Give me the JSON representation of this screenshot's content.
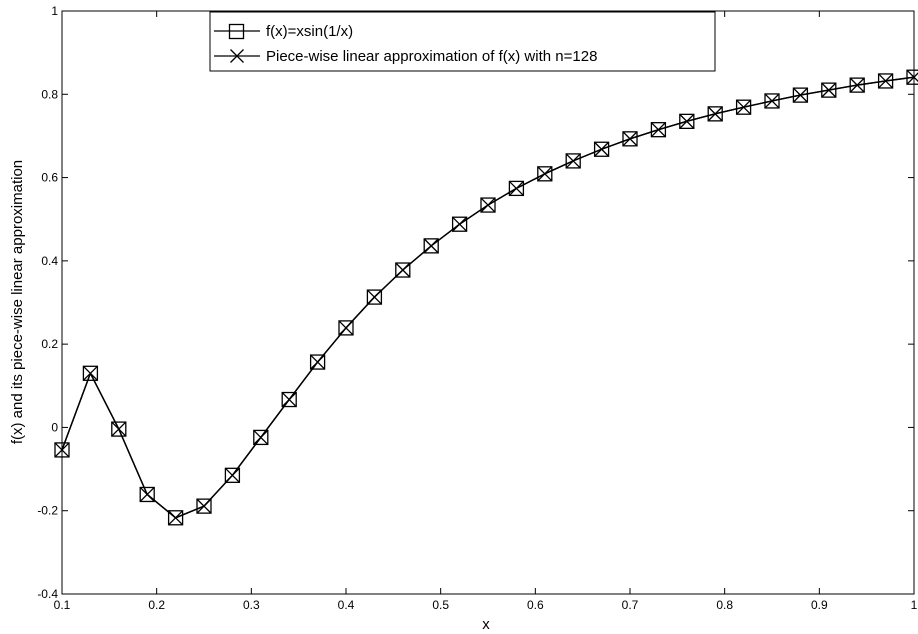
{
  "chart_data": {
    "type": "line",
    "title": "",
    "xlabel": "x",
    "ylabel": "f(x) and its piece-wise linear approximation",
    "xlim": [
      0.1,
      1
    ],
    "ylim": [
      -0.4,
      1
    ],
    "xticks": [
      0.1,
      0.2,
      0.3,
      0.4,
      0.5,
      0.6,
      0.7,
      0.8,
      0.9,
      1
    ],
    "xtick_labels": [
      "0.1",
      "0.2",
      "0.3",
      "0.4",
      "0.5",
      "0.6",
      "0.7",
      "0.8",
      "0.9",
      "1"
    ],
    "yticks": [
      -0.4,
      -0.2,
      0,
      0.2,
      0.4,
      0.6,
      0.8,
      1
    ],
    "ytick_labels": [
      "-0.4",
      "-0.2",
      "0",
      "0.2",
      "0.4",
      "0.6",
      "0.8",
      "1"
    ],
    "grid": false,
    "legend_position": "top-center",
    "line_color": "#000000",
    "series": [
      {
        "name": "f(x)=xsin(1/x)",
        "marker": "square",
        "x": [
          0.1,
          0.13,
          0.16,
          0.19,
          0.22,
          0.25,
          0.28,
          0.31,
          0.34,
          0.37,
          0.4,
          0.43,
          0.46,
          0.49,
          0.52,
          0.55,
          0.58,
          0.61,
          0.64,
          0.67,
          0.7,
          0.73,
          0.76,
          0.79,
          0.82,
          0.85,
          0.88,
          0.91,
          0.94,
          0.97,
          1.0
        ],
        "y": [
          -0.054,
          0.13,
          -0.004,
          -0.161,
          -0.217,
          -0.189,
          -0.115,
          -0.024,
          0.067,
          0.157,
          0.239,
          0.313,
          0.378,
          0.436,
          0.488,
          0.534,
          0.574,
          0.609,
          0.64,
          0.668,
          0.693,
          0.715,
          0.735,
          0.753,
          0.769,
          0.784,
          0.798,
          0.81,
          0.822,
          0.832,
          0.841
        ]
      },
      {
        "name": "Piece-wise linear approximation of f(x) with n=128",
        "marker": "x",
        "x": [
          0.1,
          0.13,
          0.16,
          0.19,
          0.22,
          0.25,
          0.28,
          0.31,
          0.34,
          0.37,
          0.4,
          0.43,
          0.46,
          0.49,
          0.52,
          0.55,
          0.58,
          0.61,
          0.64,
          0.67,
          0.7,
          0.73,
          0.76,
          0.79,
          0.82,
          0.85,
          0.88,
          0.91,
          0.94,
          0.97,
          1.0
        ],
        "y": [
          -0.054,
          0.13,
          -0.004,
          -0.161,
          -0.217,
          -0.189,
          -0.115,
          -0.024,
          0.067,
          0.157,
          0.239,
          0.313,
          0.378,
          0.436,
          0.488,
          0.534,
          0.574,
          0.609,
          0.64,
          0.668,
          0.693,
          0.715,
          0.735,
          0.753,
          0.769,
          0.784,
          0.798,
          0.81,
          0.822,
          0.832,
          0.841
        ]
      }
    ]
  }
}
